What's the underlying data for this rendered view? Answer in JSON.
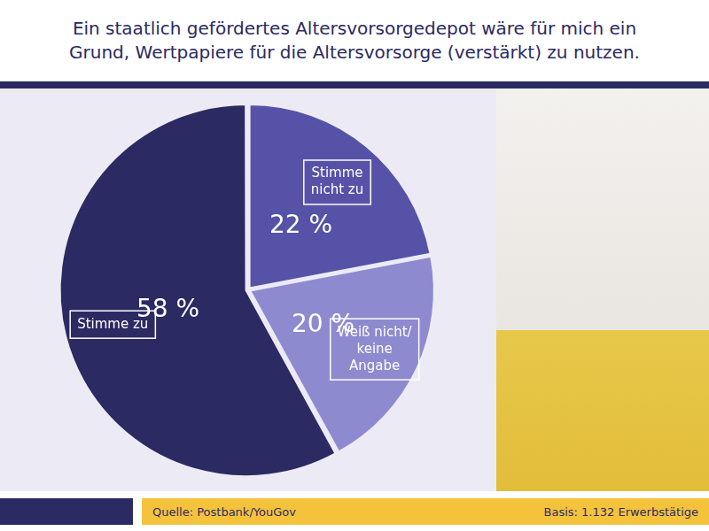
{
  "chart_data": {
    "type": "pie",
    "title": [
      "Ein staatlich gefördertes Altersvorsorgedepot wäre für mich ein",
      "Grund, Wertpapiere für die Altersvorsorge (verstärkt) zu nutzen."
    ],
    "categories": [
      "Stimme nicht zu",
      "Weiß nicht/ keine Angabe",
      "Stimme zu"
    ],
    "values": [
      22,
      20,
      58
    ],
    "value_labels": [
      "22 %",
      "20 %",
      "58 %"
    ],
    "colors": [
      "#5652a8",
      "#8d8ad0",
      "#2b2a62"
    ],
    "data_labels": true,
    "annotations": [
      "Quelle: Postbank/YouGov",
      "Basis: 1.132 Erwerbstätige"
    ]
  }
}
